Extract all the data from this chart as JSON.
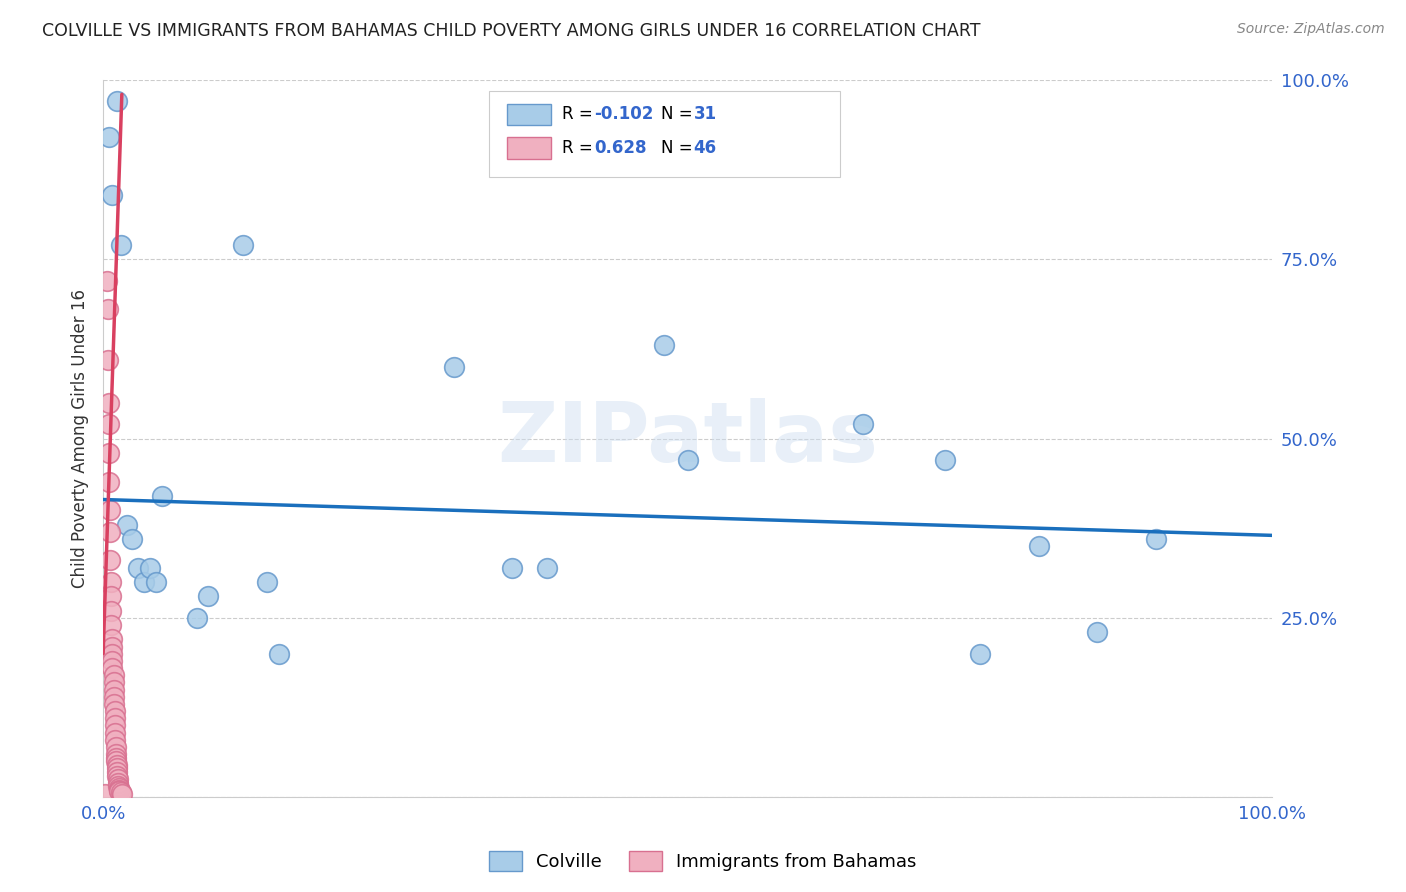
{
  "title": "COLVILLE VS IMMIGRANTS FROM BAHAMAS CHILD POVERTY AMONG GIRLS UNDER 16 CORRELATION CHART",
  "source": "Source: ZipAtlas.com",
  "ylabel": "Child Poverty Among Girls Under 16",
  "xlim": [
    0,
    1
  ],
  "ylim": [
    0,
    1
  ],
  "blue_line_color": "#1a6fbd",
  "pink_line_color": "#d94060",
  "pink_line_dash_color": "#e090a8",
  "grid_color": "#cccccc",
  "bg_color": "#ffffff",
  "title_color": "#222222",
  "tick_color": "#3366cc",
  "blue_scatter_color": "#a8cce8",
  "blue_scatter_edge": "#6699cc",
  "pink_scatter_color": "#f0b0c0",
  "pink_scatter_edge": "#d87090",
  "colville_x": [
    0.005,
    0.008,
    0.012,
    0.015,
    0.02,
    0.025,
    0.03,
    0.035,
    0.04,
    0.045,
    0.05,
    0.08,
    0.09,
    0.12,
    0.14,
    0.15,
    0.3,
    0.35,
    0.38,
    0.48,
    0.5,
    0.65,
    0.72,
    0.75,
    0.8,
    0.85,
    0.9
  ],
  "colville_y": [
    0.92,
    0.84,
    0.97,
    0.77,
    0.38,
    0.36,
    0.32,
    0.3,
    0.32,
    0.3,
    0.42,
    0.25,
    0.28,
    0.77,
    0.3,
    0.2,
    0.6,
    0.32,
    0.32,
    0.63,
    0.47,
    0.52,
    0.47,
    0.2,
    0.35,
    0.23,
    0.36
  ],
  "bahamas_x": [
    0.002,
    0.003,
    0.004,
    0.004,
    0.005,
    0.005,
    0.005,
    0.005,
    0.006,
    0.006,
    0.006,
    0.007,
    0.007,
    0.007,
    0.007,
    0.008,
    0.008,
    0.008,
    0.008,
    0.008,
    0.009,
    0.009,
    0.009,
    0.009,
    0.009,
    0.01,
    0.01,
    0.01,
    0.01,
    0.01,
    0.011,
    0.011,
    0.011,
    0.011,
    0.012,
    0.012,
    0.012,
    0.012,
    0.013,
    0.013,
    0.013,
    0.014,
    0.014,
    0.014,
    0.015,
    0.016
  ],
  "bahamas_y": [
    0.005,
    0.72,
    0.68,
    0.61,
    0.55,
    0.52,
    0.48,
    0.44,
    0.4,
    0.37,
    0.33,
    0.3,
    0.28,
    0.26,
    0.24,
    0.22,
    0.21,
    0.2,
    0.19,
    0.18,
    0.17,
    0.16,
    0.15,
    0.14,
    0.13,
    0.12,
    0.11,
    0.1,
    0.09,
    0.08,
    0.07,
    0.06,
    0.055,
    0.05,
    0.045,
    0.04,
    0.035,
    0.03,
    0.025,
    0.02,
    0.015,
    0.013,
    0.01,
    0.008,
    0.007,
    0.005
  ],
  "blue_trend_x0": 0.0,
  "blue_trend_y0": 0.415,
  "blue_trend_x1": 1.0,
  "blue_trend_y1": 0.365,
  "pink_trend_x0": 0.0,
  "pink_trend_y0": 0.2,
  "pink_trend_x1": 0.016,
  "pink_trend_y1": 0.98,
  "watermark_text": "ZIPatlas"
}
